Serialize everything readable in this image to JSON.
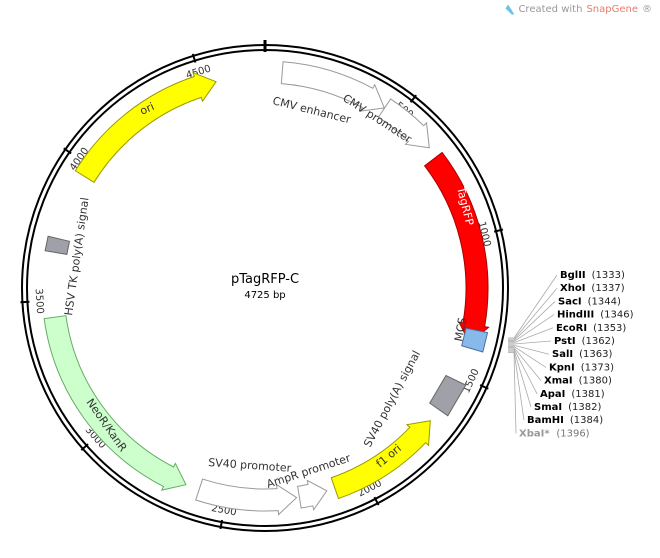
{
  "credit": {
    "prefix": "Created with ",
    "brand": "SnapGene",
    "suffix": "®"
  },
  "plasmid": {
    "name": "pTagRFP-C",
    "size_label": "4725 bp",
    "length": 4725
  },
  "ticks": [
    {
      "bp": 500,
      "label": "500"
    },
    {
      "bp": 1000,
      "label": "1000"
    },
    {
      "bp": 1500,
      "label": "1500"
    },
    {
      "bp": 2000,
      "label": "2000"
    },
    {
      "bp": 2500,
      "label": "2500"
    },
    {
      "bp": 3000,
      "label": "3000"
    },
    {
      "bp": 3500,
      "label": "3500"
    },
    {
      "bp": 4000,
      "label": "4000"
    },
    {
      "bp": 4500,
      "label": "4500"
    }
  ],
  "features": [
    {
      "name": "CMV enhancer",
      "start": 60,
      "end": 440,
      "dir": 1,
      "kind": "arrow",
      "fill": "#ffffff",
      "stroke": "#999999",
      "text": "#333333"
    },
    {
      "name": "CMV promoter",
      "start": 441,
      "end": 650,
      "dir": 1,
      "kind": "arrow",
      "fill": "#ffffff",
      "stroke": "#999999",
      "text": "#333333"
    },
    {
      "name": "TagRFP",
      "start": 690,
      "end": 1380,
      "dir": 1,
      "kind": "arrow",
      "fill": "#ff0000",
      "stroke": "#aa0000",
      "text": "#ffffff"
    },
    {
      "name": "MCS",
      "start": 1330,
      "end": 1396,
      "dir": 0,
      "kind": "box",
      "fill": "#87b9eb",
      "stroke": "#4a6fa0",
      "text": "#333333"
    },
    {
      "name": "SV40 poly(A) signal",
      "start": 1520,
      "end": 1640,
      "dir": 0,
      "kind": "box",
      "fill": "#a0a0a8",
      "stroke": "#666666",
      "text": "#333333"
    },
    {
      "name": "f1 ori",
      "start": 1690,
      "end": 2110,
      "dir": -1,
      "kind": "arrow",
      "fill": "#ffff00",
      "stroke": "#999900",
      "text": "#333333"
    },
    {
      "name": "AmpR promoter",
      "start": 2140,
      "end": 2240,
      "dir": -1,
      "kind": "arrow",
      "fill": "#ffffff",
      "stroke": "#999999",
      "text": "#333333"
    },
    {
      "name": "SV40 promoter",
      "start": 2250,
      "end": 2600,
      "dir": -1,
      "kind": "arrow",
      "fill": "#ffffff",
      "stroke": "#999999",
      "text": "#333333"
    },
    {
      "name": "NeoR/KanR",
      "start": 2650,
      "end": 3440,
      "dir": -1,
      "kind": "arrow",
      "fill": "#ccffcc",
      "stroke": "#66aa66",
      "text": "#333333"
    },
    {
      "name": "HSV TK poly(A) signal",
      "start": 3670,
      "end": 3720,
      "dir": 0,
      "kind": "box",
      "fill": "#a0a0a8",
      "stroke": "#666666",
      "text": "#333333"
    },
    {
      "name": "ori",
      "start": 3960,
      "end": 4550,
      "dir": 1,
      "kind": "arrow",
      "fill": "#ffff00",
      "stroke": "#999900",
      "text": "#333333"
    }
  ],
  "sites": [
    {
      "name": "BglII",
      "pos": "(1333)",
      "unique": true
    },
    {
      "name": "XhoI",
      "pos": "(1337)",
      "unique": true
    },
    {
      "name": "SacI",
      "pos": "(1344)",
      "unique": true
    },
    {
      "name": "HindIII",
      "pos": "(1346)",
      "unique": true
    },
    {
      "name": "EcoRI",
      "pos": "(1353)",
      "unique": true
    },
    {
      "name": "PstI",
      "pos": "(1362)",
      "unique": true
    },
    {
      "name": "SalI",
      "pos": "(1363)",
      "unique": true
    },
    {
      "name": "KpnI",
      "pos": "(1373)",
      "unique": true
    },
    {
      "name": "XmaI",
      "pos": "(1380)",
      "unique": true
    },
    {
      "name": "ApaI",
      "pos": "(1381)",
      "unique": true
    },
    {
      "name": "SmaI",
      "pos": "(1382)",
      "unique": true
    },
    {
      "name": "BamHI",
      "pos": "(1384)",
      "unique": true
    },
    {
      "name": "XbaI*",
      "pos": "(1396)",
      "unique": false
    }
  ]
}
